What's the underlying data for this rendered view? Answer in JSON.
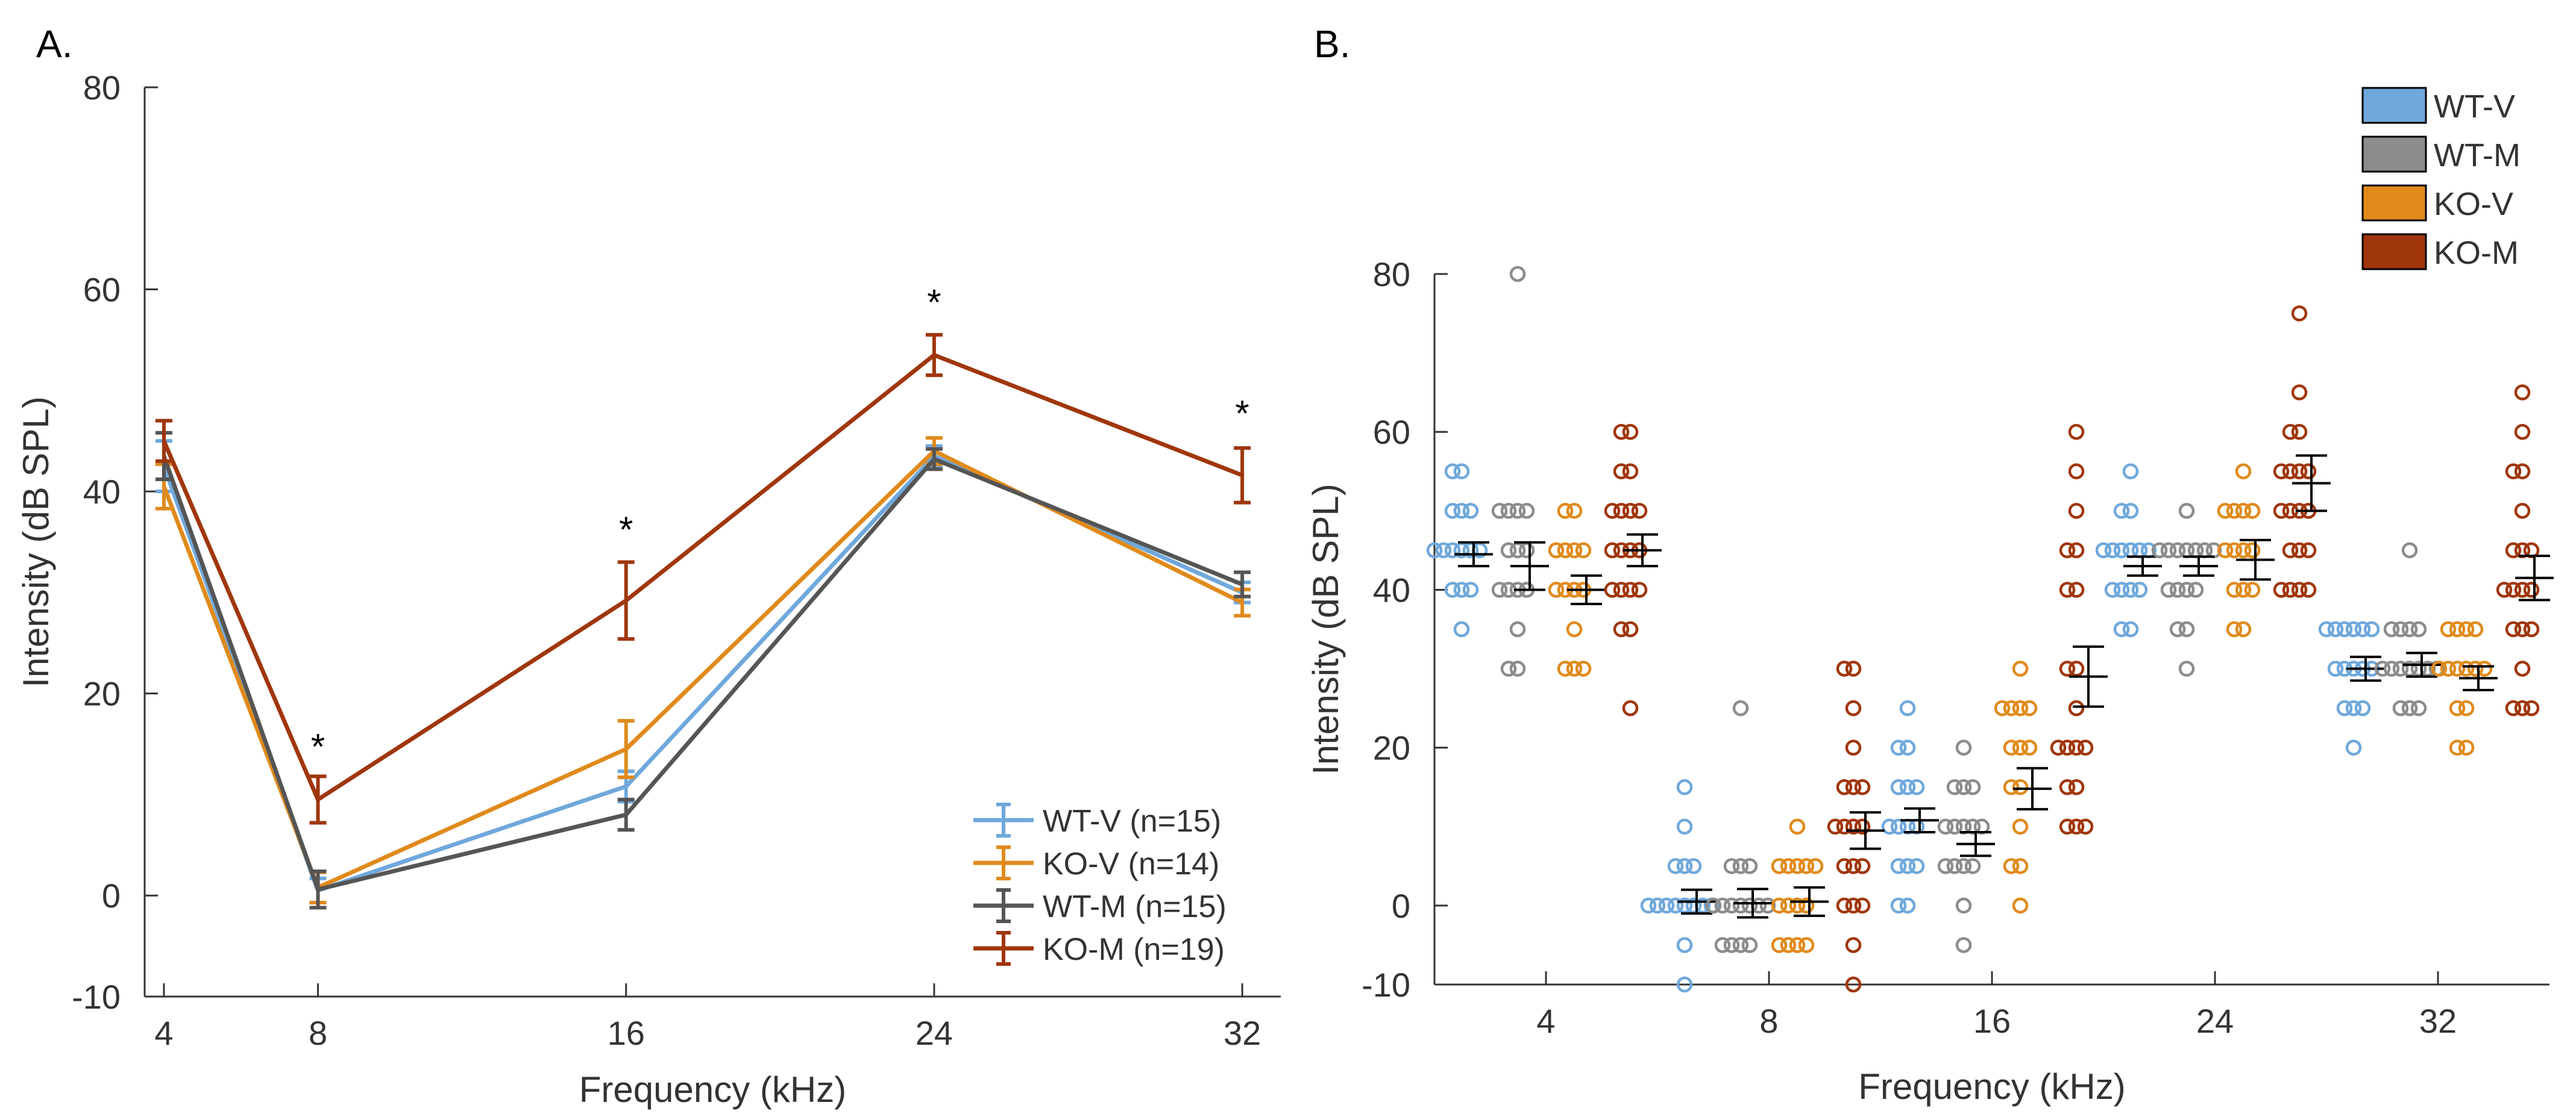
{
  "chart_data": [
    {
      "panel_label": "A.",
      "type": "line",
      "xlabel": "Frequency (kHz)",
      "ylabel": "Intensity (dB SPL)",
      "x_ticks": [
        "4",
        "8",
        "16",
        "24",
        "32"
      ],
      "x_values": [
        4,
        8,
        16,
        24,
        32
      ],
      "xlim": [
        3.5,
        33
      ],
      "ylim": [
        -10,
        80
      ],
      "y_ticks": [
        -10,
        0,
        20,
        40,
        60,
        80
      ],
      "legend_position": "bottom-right",
      "series": [
        {
          "name": "WT-V (n=15)",
          "color": "#6fa8dc",
          "values": [
            42.5,
            0.5,
            10.8,
            43.5,
            30.0
          ],
          "errors": [
            2.5,
            1.2,
            1.5,
            1.0,
            1.0
          ]
        },
        {
          "name": "KO-V (n=14)",
          "color": "#e08a1c",
          "values": [
            40.5,
            0.8,
            14.5,
            44.0,
            29.0
          ],
          "errors": [
            2.2,
            1.5,
            2.8,
            1.3,
            1.3
          ]
        },
        {
          "name": "WT-M (n=15)",
          "color": "#555555",
          "values": [
            43.5,
            0.6,
            8.0,
            43.2,
            30.8
          ],
          "errors": [
            2.3,
            1.8,
            1.5,
            1.0,
            1.2
          ]
        },
        {
          "name": "KO-M (n=19)",
          "color": "#a0360c",
          "values": [
            45.0,
            9.5,
            29.2,
            53.5,
            41.6
          ],
          "errors": [
            2.0,
            2.3,
            3.8,
            2.0,
            2.7
          ]
        }
      ],
      "annotations": [
        {
          "x": 8,
          "y": 13.5,
          "text": "*"
        },
        {
          "x": 16,
          "y": 35.0,
          "text": "*"
        },
        {
          "x": 24,
          "y": 57.5,
          "text": "*"
        },
        {
          "x": 32,
          "y": 46.5,
          "text": "*"
        }
      ]
    },
    {
      "panel_label": "B.",
      "type": "scatter",
      "xlabel": "Frequency (kHz)",
      "ylabel": "Intensity (dB SPL)",
      "categories": [
        "4",
        "8",
        "16",
        "24",
        "32"
      ],
      "ylim": [
        -10,
        80
      ],
      "y_ticks": [
        -10,
        0,
        20,
        40,
        60,
        80
      ],
      "legend_position": "top-right",
      "series": [
        {
          "name": "WT-V",
          "color": "#6fa8dc",
          "means": [
            44.5,
            0.5,
            10.8,
            43.0,
            30.0
          ],
          "errors": [
            1.5,
            1.5,
            1.5,
            1.2,
            1.5
          ],
          "points": [
            [
              55,
              55,
              50,
              50,
              45,
              45,
              45,
              45,
              40,
              40,
              40,
              35,
              45,
              50,
              45
            ],
            [
              15,
              10,
              5,
              5,
              0,
              0,
              0,
              0,
              0,
              0,
              0,
              0,
              -5,
              -10,
              5
            ],
            [
              25,
              20,
              15,
              15,
              10,
              10,
              10,
              5,
              5,
              5,
              0,
              0,
              10,
              15,
              20
            ],
            [
              55,
              50,
              45,
              45,
              45,
              45,
              45,
              40,
              40,
              40,
              40,
              35,
              35,
              45,
              50
            ],
            [
              35,
              35,
              35,
              35,
              35,
              30,
              30,
              30,
              30,
              25,
              25,
              25,
              20,
              30,
              35
            ]
          ]
        },
        {
          "name": "WT-M",
          "color": "#8c8c8c",
          "means": [
            43.0,
            0.3,
            7.8,
            43.0,
            30.5
          ],
          "errors": [
            3.0,
            1.8,
            1.5,
            1.2,
            1.5
          ],
          "points": [
            [
              80,
              50,
              50,
              50,
              45,
              45,
              40,
              40,
              40,
              35,
              30,
              30,
              45,
              50,
              40
            ],
            [
              25,
              5,
              5,
              0,
              0,
              0,
              0,
              0,
              -5,
              -5,
              -5,
              -5,
              0,
              5,
              0
            ],
            [
              20,
              15,
              15,
              10,
              10,
              10,
              10,
              5,
              5,
              5,
              5,
              0,
              -5,
              10,
              15
            ],
            [
              50,
              45,
              45,
              45,
              45,
              45,
              40,
              40,
              40,
              35,
              35,
              30,
              45,
              45,
              40
            ],
            [
              45,
              35,
              35,
              35,
              30,
              30,
              30,
              30,
              30,
              30,
              25,
              25,
              25,
              30,
              35
            ]
          ]
        },
        {
          "name": "KO-V",
          "color": "#e08a1c",
          "means": [
            40.0,
            0.5,
            14.8,
            43.8,
            28.8
          ],
          "errors": [
            1.8,
            1.8,
            2.6,
            2.5,
            1.5
          ],
          "points": [
            [
              50,
              50,
              45,
              45,
              45,
              40,
              40,
              40,
              35,
              30,
              30,
              30,
              45,
              40
            ],
            [
              10,
              5,
              5,
              5,
              5,
              0,
              0,
              0,
              -5,
              -5,
              -5,
              -5,
              5,
              0
            ],
            [
              30,
              25,
              25,
              25,
              20,
              20,
              15,
              15,
              10,
              5,
              5,
              0,
              20,
              25
            ],
            [
              55,
              50,
              50,
              50,
              45,
              45,
              45,
              40,
              40,
              40,
              35,
              35,
              50,
              45
            ],
            [
              35,
              35,
              35,
              30,
              30,
              30,
              30,
              30,
              25,
              25,
              20,
              20,
              30,
              35
            ]
          ]
        },
        {
          "name": "KO-M",
          "color": "#a0360c",
          "means": [
            45.0,
            9.5,
            29.0,
            53.5,
            41.5
          ],
          "errors": [
            2.0,
            2.3,
            3.8,
            3.5,
            2.8
          ],
          "points": [
            [
              60,
              60,
              55,
              55,
              50,
              50,
              50,
              45,
              45,
              45,
              40,
              40,
              40,
              40,
              35,
              35,
              25,
              45,
              50
            ],
            [
              30,
              30,
              25,
              20,
              15,
              15,
              10,
              10,
              10,
              5,
              5,
              5,
              0,
              0,
              0,
              -5,
              -10,
              10,
              15
            ],
            [
              60,
              55,
              50,
              45,
              45,
              40,
              40,
              30,
              30,
              25,
              20,
              20,
              20,
              15,
              15,
              10,
              10,
              10,
              20
            ],
            [
              75,
              65,
              60,
              60,
              55,
              55,
              55,
              50,
              50,
              50,
              50,
              45,
              45,
              45,
              40,
              40,
              40,
              40,
              55
            ],
            [
              65,
              60,
              55,
              55,
              50,
              45,
              45,
              40,
              40,
              40,
              35,
              35,
              35,
              30,
              25,
              25,
              25,
              40,
              45
            ]
          ]
        }
      ]
    }
  ]
}
